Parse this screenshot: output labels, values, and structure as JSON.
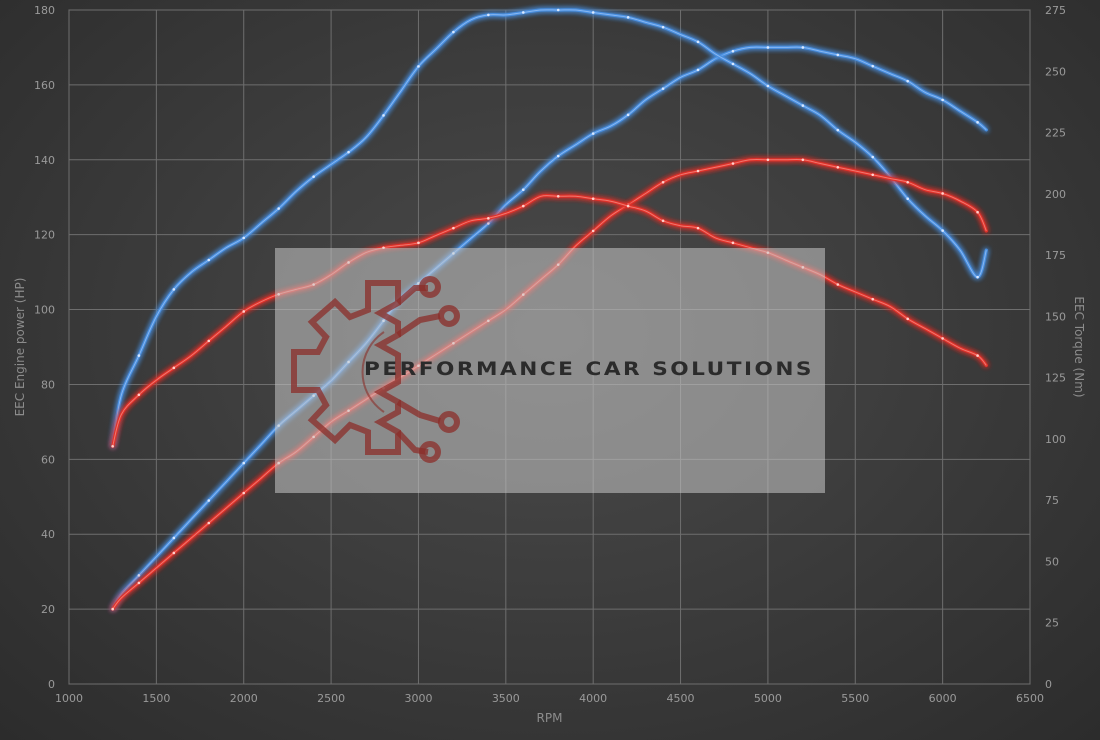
{
  "chart_data": {
    "type": "line",
    "xlabel": "RPM",
    "ylabel_left": "EEC Engine power (HP)",
    "ylabel_right": "EEC Torque (Nm)",
    "xlim": [
      1000,
      6500
    ],
    "ylim_left": [
      0,
      180
    ],
    "ylim_right": [
      0,
      275
    ],
    "x_ticks": [
      1000,
      1500,
      2000,
      2500,
      3000,
      3500,
      4000,
      4500,
      5000,
      5500,
      6000,
      6500
    ],
    "y_ticks_left": [
      0,
      20,
      40,
      60,
      80,
      100,
      120,
      140,
      160,
      180
    ],
    "y_ticks_right": [
      0,
      25,
      50,
      75,
      100,
      125,
      150,
      175,
      200,
      225,
      250,
      275
    ],
    "grid": true,
    "series": [
      {
        "color": "#4a8fe0",
        "axis": "left",
        "x": [
          1250,
          1300,
          1400,
          1500,
          1600,
          1700,
          1800,
          1900,
          2000,
          2100,
          2200,
          2300,
          2400,
          2500,
          2600,
          2700,
          2800,
          2900,
          3000,
          3100,
          3200,
          3300,
          3400,
          3500,
          3600,
          3700,
          3800,
          3900,
          4000,
          4100,
          4200,
          4300,
          4400,
          4500,
          4600,
          4700,
          4800,
          4900,
          5000,
          5100,
          5200,
          5300,
          5400,
          5500,
          5600,
          5700,
          5800,
          5900,
          6000,
          6100,
          6200,
          6250
        ],
        "y": [
          20,
          24,
          29,
          34,
          39,
          44,
          49,
          54,
          59,
          64,
          69,
          73,
          77,
          81,
          86,
          91,
          97,
          103,
          107,
          111,
          115,
          119,
          123,
          128,
          132,
          137,
          141,
          144,
          147,
          149,
          152,
          156,
          159,
          162,
          164,
          167,
          169,
          170,
          170,
          170,
          170,
          169,
          168,
          167,
          165,
          163,
          161,
          158,
          156,
          153,
          150,
          148
        ],
        "smooth": true
      },
      {
        "color": "#4a8fe0",
        "axis": "right",
        "x": [
          1250,
          1300,
          1400,
          1500,
          1600,
          1700,
          1800,
          1900,
          2000,
          2100,
          2200,
          2300,
          2400,
          2500,
          2600,
          2700,
          2800,
          2900,
          3000,
          3100,
          3200,
          3300,
          3400,
          3500,
          3600,
          3700,
          3800,
          3900,
          4000,
          4100,
          4200,
          4300,
          4400,
          4500,
          4600,
          4700,
          4800,
          4900,
          5000,
          5100,
          5200,
          5300,
          5400,
          5500,
          5600,
          5700,
          5800,
          5900,
          6000,
          6100,
          6200,
          6250
        ],
        "y": [
          97,
          118,
          134,
          150,
          161,
          168,
          173,
          178,
          182,
          188,
          194,
          201,
          207,
          212,
          217,
          223,
          232,
          242,
          252,
          259,
          266,
          271,
          273,
          273,
          274,
          275,
          275,
          275,
          274,
          273,
          272,
          270,
          268,
          265,
          262,
          257,
          253,
          249,
          244,
          240,
          236,
          232,
          226,
          221,
          215,
          207,
          198,
          191,
          185,
          177,
          166,
          177
        ],
        "smooth": true
      },
      {
        "color": "#e0302a",
        "axis": "left",
        "x": [
          1250,
          1300,
          1400,
          1500,
          1600,
          1700,
          1800,
          1900,
          2000,
          2100,
          2200,
          2300,
          2400,
          2500,
          2600,
          2700,
          2800,
          2900,
          3000,
          3100,
          3200,
          3300,
          3400,
          3500,
          3600,
          3700,
          3800,
          3900,
          4000,
          4100,
          4200,
          4300,
          4400,
          4500,
          4600,
          4700,
          4800,
          4900,
          5000,
          5100,
          5200,
          5300,
          5400,
          5500,
          5600,
          5700,
          5800,
          5900,
          6000,
          6100,
          6200,
          6250
        ],
        "y": [
          20,
          23,
          27,
          31,
          35,
          39,
          43,
          47,
          51,
          55,
          59,
          62,
          66,
          70,
          73,
          76,
          79,
          82,
          85,
          88,
          91,
          94,
          97,
          100,
          104,
          108,
          112,
          117,
          121,
          125,
          128,
          131,
          134,
          136,
          137,
          138,
          139,
          140,
          140,
          140,
          140,
          139,
          138,
          137,
          136,
          135,
          134,
          132,
          131,
          129,
          126,
          121
        ],
        "smooth": true
      },
      {
        "color": "#e0302a",
        "axis": "right",
        "x": [
          1250,
          1300,
          1400,
          1500,
          1600,
          1700,
          1800,
          1900,
          2000,
          2100,
          2200,
          2300,
          2400,
          2500,
          2600,
          2700,
          2800,
          2900,
          3000,
          3100,
          3200,
          3300,
          3400,
          3500,
          3600,
          3700,
          3800,
          3900,
          4000,
          4100,
          4200,
          4300,
          4400,
          4500,
          4600,
          4700,
          4800,
          4900,
          5000,
          5100,
          5200,
          5300,
          5400,
          5500,
          5600,
          5700,
          5800,
          5900,
          6000,
          6100,
          6200,
          6250
        ],
        "y": [
          97,
          110,
          118,
          124,
          129,
          134,
          140,
          146,
          152,
          156,
          159,
          161,
          163,
          167,
          172,
          176,
          178,
          179,
          180,
          183,
          186,
          189,
          190,
          192,
          195,
          199,
          199,
          199,
          198,
          197,
          195,
          193,
          189,
          187,
          186,
          182,
          180,
          178,
          176,
          173,
          170,
          167,
          163,
          160,
          157,
          154,
          149,
          145,
          141,
          137,
          134,
          130
        ],
        "smooth": true
      }
    ]
  },
  "watermark": {
    "text": "PERFORMANCE CAR SOLUTIONS",
    "logo_icon": "gear-circuit-icon",
    "logo_color": "#8b2e2a"
  }
}
